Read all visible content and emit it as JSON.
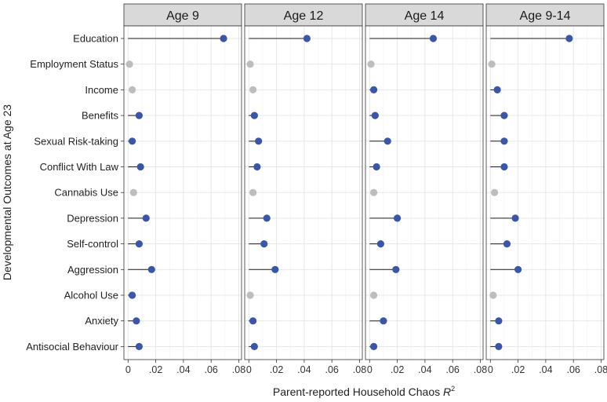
{
  "chart_data": {
    "type": "lollipop",
    "xlabel": "Parent-reported Household Chaos",
    "xlabel_italic": "R",
    "xlabel_sup": "2",
    "ylabel": "Developmental Outcomes at Age 23",
    "xlim": [
      -0.003,
      0.082
    ],
    "xticks": [
      0,
      0.02,
      0.04,
      0.06,
      0.08
    ],
    "xtick_labels": [
      "0",
      ".02",
      ".04",
      ".06",
      ".08"
    ],
    "grid": true,
    "categories": [
      "Education",
      "Employment Status",
      "Income",
      "Benefits",
      "Sexual Risk-taking",
      "Conflict With Law",
      "Cannabis Use",
      "Depression",
      "Self-control",
      "Aggression",
      "Alcohol Use",
      "Anxiety",
      "Antisocial Behaviour"
    ],
    "colors": {
      "significant": "#3a57a7",
      "nonsignificant": "#bdbdbd",
      "strip": "#d9d9d9",
      "stem": "#1a1a1a"
    },
    "panels": [
      {
        "title": "Age 9",
        "values": [
          0.069,
          0.001,
          0.003,
          0.008,
          0.003,
          0.009,
          0.004,
          0.013,
          0.008,
          0.017,
          0.003,
          0.006,
          0.008
        ],
        "significant": [
          true,
          false,
          false,
          true,
          true,
          true,
          false,
          true,
          true,
          true,
          true,
          true,
          true
        ]
      },
      {
        "title": "Age 12",
        "values": [
          0.042,
          0.001,
          0.003,
          0.004,
          0.007,
          0.006,
          0.003,
          0.013,
          0.011,
          0.019,
          0.001,
          0.003,
          0.004
        ],
        "significant": [
          true,
          false,
          false,
          true,
          true,
          true,
          false,
          true,
          true,
          true,
          false,
          true,
          true
        ]
      },
      {
        "title": "Age 14",
        "values": [
          0.046,
          0.001,
          0.003,
          0.004,
          0.013,
          0.005,
          0.003,
          0.02,
          0.008,
          0.019,
          0.003,
          0.01,
          0.003
        ],
        "significant": [
          true,
          false,
          true,
          true,
          true,
          true,
          false,
          true,
          true,
          true,
          false,
          true,
          true
        ]
      },
      {
        "title": "Age 9-14",
        "values": [
          0.057,
          0.001,
          0.005,
          0.01,
          0.01,
          0.01,
          0.003,
          0.018,
          0.012,
          0.02,
          0.002,
          0.006,
          0.006
        ],
        "significant": [
          true,
          false,
          true,
          true,
          true,
          true,
          false,
          true,
          true,
          true,
          false,
          true,
          true
        ]
      }
    ]
  }
}
